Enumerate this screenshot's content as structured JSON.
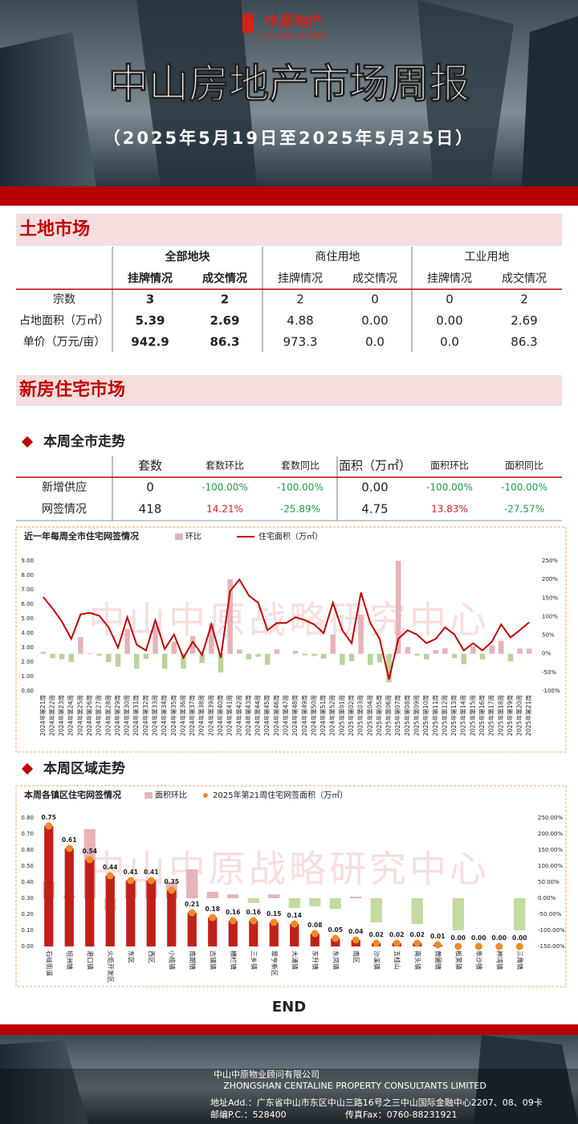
{
  "header": {
    "logo": "中原地产",
    "logo_en": "CENTALINE PROPERTY",
    "title": "中山房地产市场周报",
    "date_range": "（2025年5月19日至2025年5月25日）"
  },
  "land_market": {
    "title": "土地市场",
    "groups": [
      "全部地块",
      "商住用地",
      "工业用地"
    ],
    "columns": [
      "挂牌情况",
      "成交情况",
      "挂牌情况",
      "成交情况",
      "挂牌情况",
      "成交情况"
    ],
    "rows": [
      {
        "label": "宗数",
        "values": [
          "3",
          "2",
          "2",
          "0",
          "0",
          "2"
        ]
      },
      {
        "label": "占地面积（万㎡）",
        "values": [
          "5.39",
          "2.69",
          "4.88",
          "0.00",
          "0.00",
          "2.69"
        ]
      },
      {
        "label": "单价（万元/亩）",
        "values": [
          "942.9",
          "86.3",
          "973.3",
          "0.0",
          "0.0",
          "86.3"
        ]
      }
    ]
  },
  "new_home": {
    "title": "新房住宅市场",
    "citywide_title": "本周全市走势",
    "columns": [
      "套数",
      "套数环比",
      "套数同比",
      "面积（万㎡）",
      "面积环比",
      "面积同比"
    ],
    "rows": [
      {
        "label": "新增供应",
        "values": [
          "0",
          "-100.00%",
          "-100.00%",
          "0.00",
          "-100.00%",
          "-100.00%"
        ]
      },
      {
        "label": "网签情况",
        "values": [
          "418",
          "14.21%",
          "-25.89%",
          "4.75",
          "13.83%",
          "-27.57%"
        ]
      }
    ],
    "region_title": "本周区域走势"
  },
  "chart_data": [
    {
      "type": "combo",
      "title": "近一年每周全市住宅网签情况",
      "watermark": "中山中原战略研究中心",
      "categories": [
        "2024年第21周",
        "2024年第22周",
        "2024年第23周",
        "2024年第24周",
        "2024年第25周",
        "2024年第26周",
        "2024年第27周",
        "2024年第28周",
        "2024年第29周",
        "2024年第30周",
        "2024年第31周",
        "2024年第32周",
        "2024年第33周",
        "2024年第34周",
        "2024年第35周",
        "2024年第36周",
        "2024年第37周",
        "2024年第38周",
        "2024年第39周",
        "2024年第40周",
        "2024年第41周",
        "2024年第42周",
        "2024年第43周",
        "2024年第44周",
        "2024年第45周",
        "2024年第46周",
        "2024年第47周",
        "2024年第48周",
        "2024年第49周",
        "2024年第50周",
        "2024年第51周",
        "2024年第52周",
        "2025年第01周",
        "2025年第02周",
        "2025年第03周",
        "2025年第04周",
        "2025年第05周",
        "2025年第06周",
        "2025年第07周",
        "2025年第08周",
        "2025年第09周",
        "2025年第10周",
        "2025年第11周",
        "2025年第12周",
        "2025年第13周",
        "2025年第14周",
        "2025年第15周",
        "2025年第16周",
        "2025年第17周",
        "2025年第18周",
        "2025年第19周",
        "2025年第20周",
        "2025年第21周"
      ],
      "series": [
        {
          "name": "环比",
          "type": "bar",
          "axis": "y2",
          "color": "#e6b3b8",
          "negative_color": "#b9d39a",
          "values": [
            5,
            -12,
            -15,
            -22,
            45,
            2,
            -5,
            -22,
            -35,
            67,
            -40,
            -14,
            75,
            -40,
            33,
            -40,
            48,
            -25,
            82,
            -50,
            200,
            12,
            -15,
            -8,
            -30,
            12,
            0,
            8,
            -4,
            -6,
            -13,
            52,
            -30,
            -20,
            105,
            -30,
            -23,
            -77,
            250,
            18,
            -5,
            -15,
            10,
            15,
            -12,
            -28,
            20,
            -15,
            22,
            35,
            -20,
            14,
            13.83
          ]
        },
        {
          "name": "住宅面积（万㎡）",
          "type": "line",
          "color": "#c00000",
          "values": [
            6.5,
            5.7,
            4.8,
            3.6,
            5.3,
            5.4,
            5.2,
            4.4,
            3.0,
            5.1,
            3.2,
            2.8,
            4.9,
            2.9,
            3.9,
            2.3,
            3.4,
            2.5,
            4.6,
            2.3,
            6.9,
            7.7,
            6.6,
            6.1,
            4.2,
            4.7,
            4.7,
            5.1,
            4.9,
            4.6,
            4.0,
            6.1,
            4.2,
            3.3,
            6.8,
            4.7,
            3.6,
            0.8,
            3.6,
            4.2,
            3.9,
            3.3,
            3.6,
            4.4,
            3.9,
            2.8,
            3.3,
            2.8,
            3.4,
            4.6,
            3.7,
            4.2,
            4.75
          ]
        }
      ],
      "ylim": [
        0,
        9
      ],
      "yticks": [
        {
          "value": 0,
          "label": "0.00"
        },
        {
          "value": 1,
          "label": "1.00"
        },
        {
          "value": 2,
          "label": "2.00"
        },
        {
          "value": 3,
          "label": "3.00"
        },
        {
          "value": 4,
          "label": "4.00"
        },
        {
          "value": 5,
          "label": "5.00"
        },
        {
          "value": 6,
          "label": "6.00"
        },
        {
          "value": 7,
          "label": "7.00"
        },
        {
          "value": 8,
          "label": "8.00"
        },
        {
          "value": 9,
          "label": "9.00"
        }
      ],
      "y2lim": [
        -100,
        250
      ],
      "y2ticks": [
        {
          "value": -100,
          "label": "-100%"
        },
        {
          "value": -50,
          "label": "-50%"
        },
        {
          "value": 0,
          "label": "0%"
        },
        {
          "value": 50,
          "label": "50%"
        },
        {
          "value": 100,
          "label": "100%"
        },
        {
          "value": 150,
          "label": "150%"
        },
        {
          "value": 200,
          "label": "200%"
        },
        {
          "value": 250,
          "label": "250%"
        }
      ]
    },
    {
      "type": "combo",
      "title": "本周各镇区住宅网签情况",
      "watermark": "中山中原战略研究中心",
      "categories": [
        "石岐街道",
        "坦洲镇",
        "港口镇",
        "火炬开发区",
        "东区",
        "西区",
        "小榄镇",
        "南朗镇",
        "古镇镇",
        "横栏镇",
        "三乡镇",
        "翠亨新区",
        "大涌镇",
        "东升镇",
        "东凤镇",
        "南区",
        "沙溪镇",
        "五桂山",
        "南头镇",
        "黄圃镇",
        "板芙镇",
        "阜沙镇",
        "神湾镇",
        "三角镇"
      ],
      "series": [
        {
          "name": "面积环比",
          "type": "bar",
          "axis": "y2",
          "color": "#e6b3b8",
          "negative_color": "#c3db9e",
          "values": [
            52,
            8,
            215,
            -38,
            57,
            57,
            50,
            90,
            20,
            12,
            -15,
            12,
            -30,
            -25,
            -33,
            5,
            -75,
            0,
            -80,
            0,
            -100,
            0,
            0,
            -100
          ]
        },
        {
          "name": "2025年第21周住宅网签面积（万㎡）",
          "type": "dotbar",
          "color": "#c0201a",
          "marker_color": "#f08a24",
          "values": [
            0.75,
            0.61,
            0.54,
            0.44,
            0.41,
            0.41,
            0.35,
            0.21,
            0.18,
            0.16,
            0.16,
            0.15,
            0.14,
            0.08,
            0.05,
            0.04,
            0.02,
            0.02,
            0.02,
            0.01,
            0,
            0,
            0,
            0
          ],
          "value_labels": [
            "0.75",
            "0.61",
            "0.54",
            "0.44",
            "0.41",
            "0.41",
            "0.35",
            "0.21",
            "0.18",
            "0.16",
            "0.16",
            "0.15",
            "0.14",
            "0.08",
            "0.05",
            "0.04",
            "0.02",
            "0.02",
            "0.02",
            "0.01",
            "0.00",
            "0.00",
            "0.00",
            "0.00"
          ]
        }
      ],
      "ylim": [
        0,
        0.8
      ],
      "yticks": [
        {
          "value": 0,
          "label": "0.00"
        },
        {
          "value": 0.1,
          "label": "0.10"
        },
        {
          "value": 0.2,
          "label": "0.20"
        },
        {
          "value": 0.3,
          "label": "0.30"
        },
        {
          "value": 0.4,
          "label": "0.40"
        },
        {
          "value": 0.5,
          "label": "0.50"
        },
        {
          "value": 0.6,
          "label": "0.60"
        },
        {
          "value": 0.7,
          "label": "0.70"
        },
        {
          "value": 0.8,
          "label": "0.80"
        }
      ],
      "y2lim": [
        -150,
        250
      ],
      "y2ticks": [
        {
          "value": -150,
          "label": "-150.00%"
        },
        {
          "value": -100,
          "label": "-100.00%"
        },
        {
          "value": -50,
          "label": "-50.00%"
        },
        {
          "value": 0,
          "label": "0.00%"
        },
        {
          "value": 50,
          "label": "50.00%"
        },
        {
          "value": 100,
          "label": "100.00%"
        },
        {
          "value": 150,
          "label": "150.00%"
        },
        {
          "value": 200,
          "label": "200.00%"
        },
        {
          "value": 250,
          "label": "250.00%"
        }
      ]
    }
  ],
  "end": "END",
  "footer": {
    "company": "中山中原物业顾问有限公司",
    "company_en": "ZHONGSHAN CENTALINE PROPERTY CONSULTANTS LIMITED",
    "address": "地址Add.：广东省中山市东区中山三路16号之三中山国际金融中心2207、08、09卡",
    "postal": "邮编P.C.：528400",
    "fax": "传真Fax：0760-88231921"
  }
}
